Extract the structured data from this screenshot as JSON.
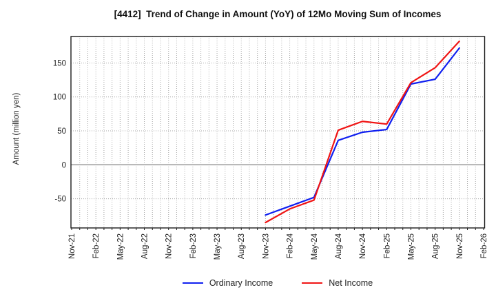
{
  "chart": {
    "title": "[4412]  Trend of Change in Amount (YoY) of 12Mo Moving Sum of Incomes",
    "ylabel": "Amount (million yen)"
  },
  "chart_data": {
    "type": "line",
    "title": "[4412]  Trend of Change in Amount (YoY) of 12Mo Moving Sum of Incomes",
    "xlabel": "",
    "ylabel": "Amount (million yen)",
    "x_tick_labels": [
      "Nov-21",
      "Feb-22",
      "May-22",
      "Aug-22",
      "Nov-22",
      "Feb-23",
      "May-23",
      "Aug-23",
      "Nov-23",
      "Feb-24",
      "May-24",
      "Aug-24",
      "Nov-24",
      "Feb-25",
      "May-25",
      "Aug-25",
      "Nov-25",
      "Feb-26"
    ],
    "months_per_labeled_tick": 3,
    "total_months_span": 51,
    "yticks": [
      -50,
      0,
      50,
      100,
      150
    ],
    "ylim": [
      -93,
      189
    ],
    "grid": "dotted vertical line every month, dotted horizontal line every 50, solid line at 0",
    "legend_position": "bottom-center",
    "categories": [
      "Nov-23",
      "Feb-24",
      "May-24",
      "Aug-24",
      "Nov-24",
      "Feb-25",
      "May-25",
      "Aug-25",
      "Nov-25"
    ],
    "series": [
      {
        "name": "Ordinary Income",
        "color": "#0f1ff0",
        "start_month_index": 24,
        "month_step": 3,
        "values": [
          -74,
          -61,
          -48,
          36,
          48,
          52,
          119,
          126,
          172
        ]
      },
      {
        "name": "Net Income",
        "color": "#f01414",
        "start_month_index": 24,
        "month_step": 3,
        "values": [
          -85,
          -65,
          -52,
          51,
          64,
          60,
          121,
          143,
          182
        ]
      }
    ]
  },
  "colors": {
    "background": "#ffffff",
    "frame": "#1a1a1a",
    "grid_dotted": "#a8a8a8",
    "zero_line": "#8c8c8c",
    "tick_text": "#222222",
    "title_text": "#111111"
  }
}
